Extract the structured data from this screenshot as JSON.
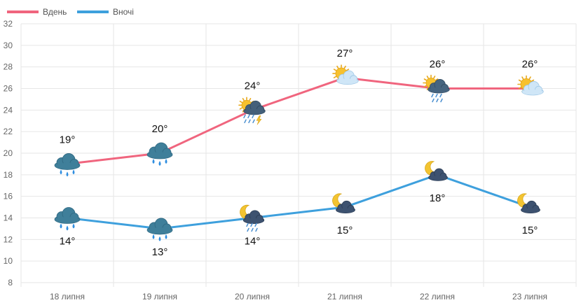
{
  "chart_data": {
    "type": "line",
    "categories": [
      "18 липня",
      "19 липня",
      "20 липня",
      "21 липня",
      "22 липня",
      "23 липня"
    ],
    "ylim": [
      8,
      32
    ],
    "yticks": [
      8,
      10,
      12,
      14,
      16,
      18,
      20,
      22,
      24,
      26,
      28,
      30,
      32
    ],
    "grid": true,
    "legend_position": "top-left",
    "value_suffix": "°",
    "series": [
      {
        "name": "Вдень",
        "color": "#f0657e",
        "values": [
          19,
          20,
          24,
          27,
          26,
          26
        ],
        "labels": [
          "19°",
          "20°",
          "24°",
          "27°",
          "26°",
          "26°"
        ],
        "icons": [
          "rain-cloud",
          "rain-cloud",
          "sun-thunderstorm",
          "sun-cloud",
          "sun-rain-cloud",
          "sun-cloud"
        ]
      },
      {
        "name": "Вночі",
        "color": "#3ea0dd",
        "values": [
          14,
          13,
          14,
          15,
          18,
          15
        ],
        "labels": [
          "14°",
          "13°",
          "14°",
          "15°",
          "18°",
          "15°"
        ],
        "icons": [
          "rain-cloud",
          "rain-cloud",
          "moon-rain-cloud",
          "moon-cloud",
          "moon-cloud",
          "moon-cloud"
        ]
      }
    ]
  }
}
